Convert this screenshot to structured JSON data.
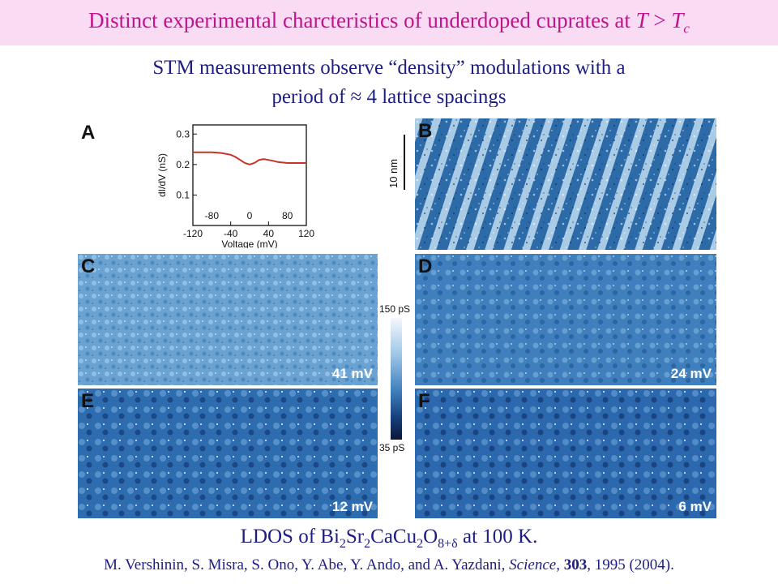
{
  "title": {
    "main": "Distinct experimental charcteristics of underdoped cuprates at ",
    "T": "T",
    "gt": " > ",
    "Tc": "T",
    "c": "c"
  },
  "subtitle": {
    "line1": "STM measurements observe “density” modulations with a",
    "line2": "period of ≈ 4 lattice spacings"
  },
  "figure": {
    "panelA": {
      "letter": "A"
    },
    "panelB": {
      "letter": "B",
      "scalebar": "10 nm"
    },
    "panelC": {
      "letter": "C",
      "energy": "41 mV"
    },
    "panelD": {
      "letter": "D",
      "energy": "24 mV"
    },
    "panelE": {
      "letter": "E",
      "energy": "12 mV"
    },
    "panelF": {
      "letter": "F",
      "energy": "6 mV"
    },
    "colorbar": {
      "top": "150 pS",
      "bottom": "35 pS"
    }
  },
  "chart_data": {
    "type": "line",
    "xlabel": "Voltage (mV)",
    "ylabel": "dI/dV (nS)",
    "xlim": [
      -120,
      120
    ],
    "ylim": [
      0,
      0.33
    ],
    "xticks_bottom": [
      "-120",
      "-40",
      "40",
      "120"
    ],
    "xticks_inner": [
      "-80",
      "0",
      "80"
    ],
    "yticks": [
      "0.1",
      "0.2",
      "0.3"
    ],
    "x": [
      -120,
      -100,
      -80,
      -60,
      -40,
      -30,
      -20,
      -10,
      0,
      10,
      20,
      30,
      40,
      50,
      60,
      80,
      100,
      120
    ],
    "y": [
      0.24,
      0.24,
      0.24,
      0.238,
      0.232,
      0.225,
      0.215,
      0.205,
      0.2,
      0.205,
      0.215,
      0.218,
      0.215,
      0.212,
      0.208,
      0.205,
      0.205,
      0.205
    ],
    "line_color": "#c83228"
  },
  "caption": {
    "prefix": "LDOS of Bi",
    "n1": "2",
    "sr": "Sr",
    "n2": "2",
    "ca": "CaCu",
    "n3": "2",
    "o": "O",
    "n4": "8+δ",
    "suffix": " at 100 K."
  },
  "reference": {
    "authors": "M. Vershinin, S. Misra, S. Ono, Y. Abe, Y. Ando, and A. Yazdani, ",
    "journal": "Science",
    "comma": ", ",
    "volume": "303",
    "rest": ", 1995 (2004)."
  },
  "colors": {
    "title": "#c0148c",
    "text": "#1e1e82",
    "title_bg": "#f9dcf3"
  }
}
